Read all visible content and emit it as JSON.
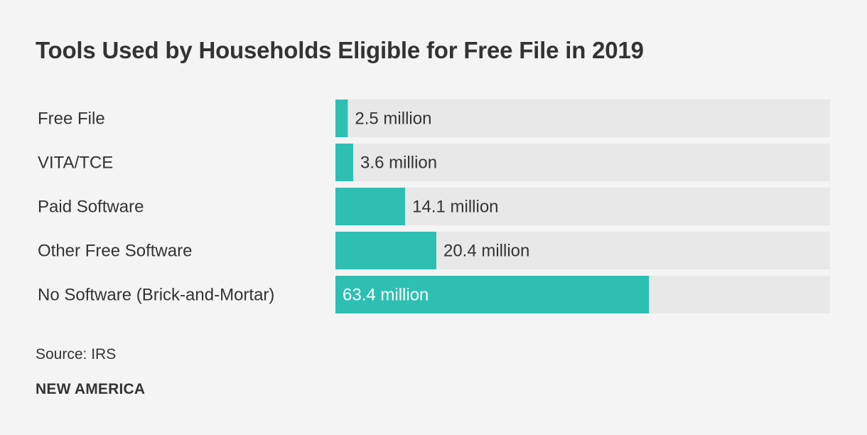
{
  "chart_data": {
    "type": "bar",
    "orientation": "horizontal",
    "title": "Tools Used by Households Eligible for Free File in 2019",
    "categories": [
      "Free File",
      "VITA/TCE",
      "Paid Software",
      "Other Free Software",
      "No Software (Brick-and-Mortar)"
    ],
    "values": [
      2.5,
      3.6,
      14.1,
      20.4,
      63.4
    ],
    "value_labels": [
      "2.5 million",
      "3.6 million",
      "14.1 million",
      "20.4 million",
      "63.4 million"
    ],
    "unit": "million households",
    "xlim": [
      0,
      100
    ],
    "xlabel": "",
    "ylabel": "",
    "grid": false
  },
  "footer": {
    "source": "Source: IRS",
    "brand": "NEW AMERICA"
  },
  "colors": {
    "bar": "#2ebfb3",
    "track": "#e8e8e8",
    "text": "#333333",
    "label_on_bar": "#ffffff"
  }
}
